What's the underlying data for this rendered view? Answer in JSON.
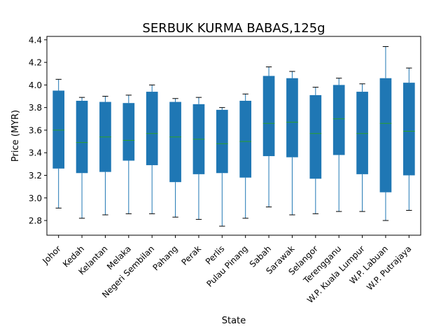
{
  "chart_data": {
    "type": "box",
    "title": "SERBUK KURMA BABAS,125g",
    "xlabel": "State",
    "ylabel": "Price (MYR)",
    "ylim": [
      2.67,
      4.43
    ],
    "yticks": [
      "2.8",
      "3.0",
      "3.2",
      "3.4",
      "3.6",
      "3.8",
      "4.0",
      "4.2",
      "4.4"
    ],
    "grid": false,
    "colors": {
      "box": "#1f77b4",
      "median": "#2ca02c",
      "whisker": "#1f77b4",
      "cap": "#000000"
    },
    "categories": [
      "Johor",
      "Kedah",
      "Kelantan",
      "Melaka",
      "Negeri Sembilan",
      "Pahang",
      "Perak",
      "Perlis",
      "Pulau Pinang",
      "Sabah",
      "Sarawak",
      "Selangor",
      "Terengganu",
      "W.P. Kuala Lumpur",
      "W.P. Labuan",
      "W.P. Putrajaya"
    ],
    "boxes": [
      {
        "min": 2.91,
        "q1": 3.26,
        "median": 3.6,
        "q3": 3.95,
        "max": 4.05
      },
      {
        "min": 2.82,
        "q1": 3.22,
        "median": 3.49,
        "q3": 3.86,
        "max": 3.89
      },
      {
        "min": 2.85,
        "q1": 3.23,
        "median": 3.54,
        "q3": 3.85,
        "max": 3.9
      },
      {
        "min": 2.86,
        "q1": 3.33,
        "median": 3.51,
        "q3": 3.84,
        "max": 3.91
      },
      {
        "min": 2.86,
        "q1": 3.29,
        "median": 3.57,
        "q3": 3.94,
        "max": 4.0
      },
      {
        "min": 2.83,
        "q1": 3.14,
        "median": 3.54,
        "q3": 3.85,
        "max": 3.88
      },
      {
        "min": 2.81,
        "q1": 3.21,
        "median": 3.52,
        "q3": 3.83,
        "max": 3.89
      },
      {
        "min": 2.75,
        "q1": 3.22,
        "median": 3.48,
        "q3": 3.78,
        "max": 3.8
      },
      {
        "min": 2.82,
        "q1": 3.18,
        "median": 3.5,
        "q3": 3.86,
        "max": 3.92
      },
      {
        "min": 2.92,
        "q1": 3.37,
        "median": 3.66,
        "q3": 4.08,
        "max": 4.16
      },
      {
        "min": 2.85,
        "q1": 3.36,
        "median": 3.67,
        "q3": 4.06,
        "max": 4.12
      },
      {
        "min": 2.86,
        "q1": 3.17,
        "median": 3.57,
        "q3": 3.91,
        "max": 3.98
      },
      {
        "min": 2.88,
        "q1": 3.38,
        "median": 3.7,
        "q3": 4.0,
        "max": 4.06
      },
      {
        "min": 2.88,
        "q1": 3.21,
        "median": 3.57,
        "q3": 3.94,
        "max": 4.01
      },
      {
        "min": 2.8,
        "q1": 3.05,
        "median": 3.66,
        "q3": 4.06,
        "max": 4.34
      },
      {
        "min": 2.89,
        "q1": 3.2,
        "median": 3.59,
        "q3": 4.02,
        "max": 4.15
      }
    ]
  }
}
